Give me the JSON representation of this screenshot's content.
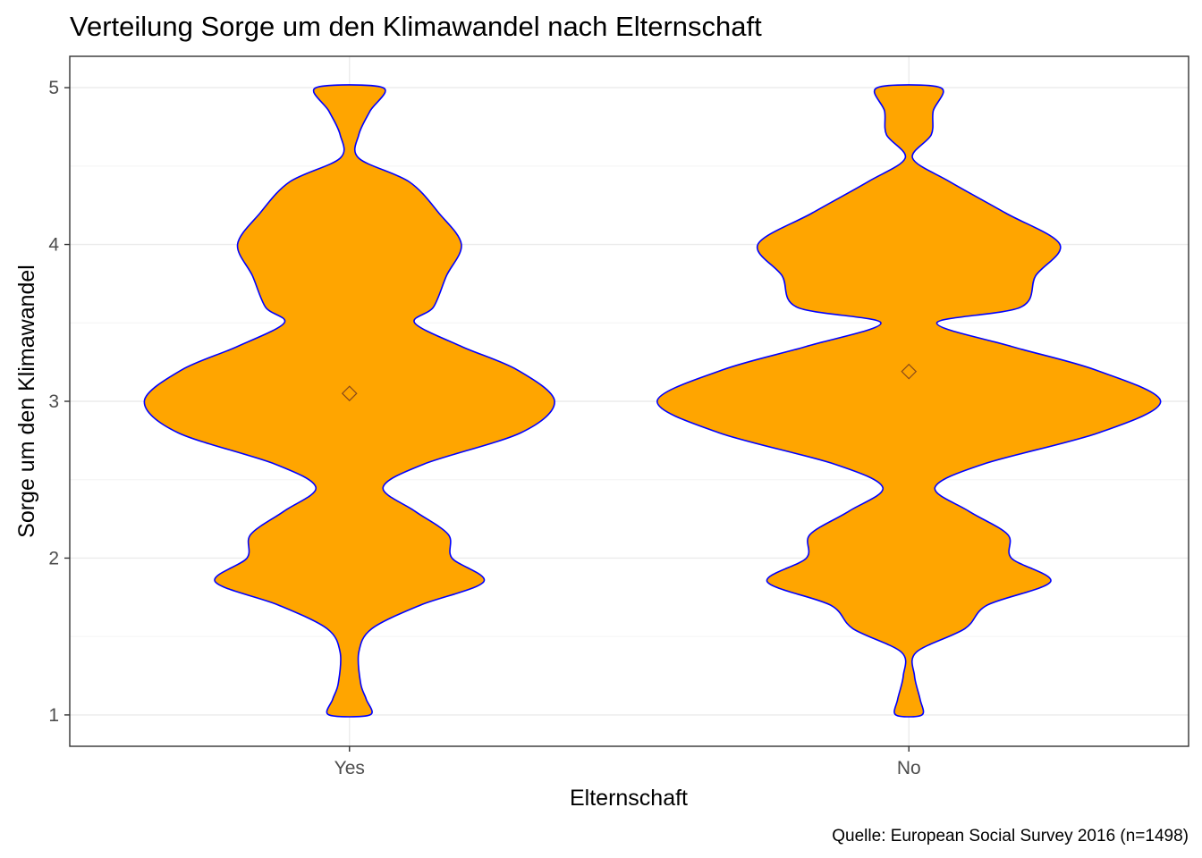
{
  "chart_data": {
    "type": "violin",
    "title": "Verteilung Sorge um den Klimawandel nach Elternschaft",
    "xlabel": "Elternschaft",
    "ylabel": "Sorge um den Klimawandel",
    "caption": "Quelle: European Social Survey 2016 (n=1498)",
    "categories": [
      "Yes",
      "No"
    ],
    "ylim": [
      0.8,
      5.2
    ],
    "yticks": [
      1,
      2,
      3,
      4,
      5
    ],
    "grid": true,
    "fill_color": "#FFA500",
    "outline_color": "#0000FF",
    "mean_marker": "diamond",
    "series": [
      {
        "name": "Yes",
        "mean": 3.05,
        "density_profile": [
          [
            1.0,
            0.11
          ],
          [
            1.1,
            0.09
          ],
          [
            1.2,
            0.06
          ],
          [
            1.4,
            0.05
          ],
          [
            1.55,
            0.12
          ],
          [
            1.7,
            0.38
          ],
          [
            1.85,
            0.72
          ],
          [
            2.0,
            0.55
          ],
          [
            2.15,
            0.53
          ],
          [
            2.3,
            0.35
          ],
          [
            2.45,
            0.18
          ],
          [
            2.6,
            0.4
          ],
          [
            2.8,
            0.92
          ],
          [
            3.0,
            1.1
          ],
          [
            3.2,
            0.9
          ],
          [
            3.35,
            0.6
          ],
          [
            3.5,
            0.35
          ],
          [
            3.6,
            0.45
          ],
          [
            3.8,
            0.52
          ],
          [
            4.0,
            0.6
          ],
          [
            4.2,
            0.48
          ],
          [
            4.4,
            0.32
          ],
          [
            4.55,
            0.05
          ],
          [
            4.7,
            0.05
          ],
          [
            4.85,
            0.11
          ],
          [
            5.0,
            0.18
          ]
        ]
      },
      {
        "name": "No",
        "mean": 3.19,
        "density_profile": [
          [
            1.0,
            0.07
          ],
          [
            1.1,
            0.06
          ],
          [
            1.25,
            0.03
          ],
          [
            1.4,
            0.04
          ],
          [
            1.55,
            0.3
          ],
          [
            1.7,
            0.42
          ],
          [
            1.85,
            0.76
          ],
          [
            2.0,
            0.55
          ],
          [
            2.15,
            0.53
          ],
          [
            2.3,
            0.32
          ],
          [
            2.45,
            0.14
          ],
          [
            2.6,
            0.4
          ],
          [
            2.8,
            1.02
          ],
          [
            3.0,
            1.35
          ],
          [
            3.2,
            1.0
          ],
          [
            3.35,
            0.55
          ],
          [
            3.5,
            0.15
          ],
          [
            3.6,
            0.6
          ],
          [
            3.8,
            0.68
          ],
          [
            4.0,
            0.81
          ],
          [
            4.2,
            0.52
          ],
          [
            4.4,
            0.22
          ],
          [
            4.55,
            0.02
          ],
          [
            4.7,
            0.12
          ],
          [
            4.85,
            0.13
          ],
          [
            5.0,
            0.17
          ]
        ]
      }
    ]
  }
}
